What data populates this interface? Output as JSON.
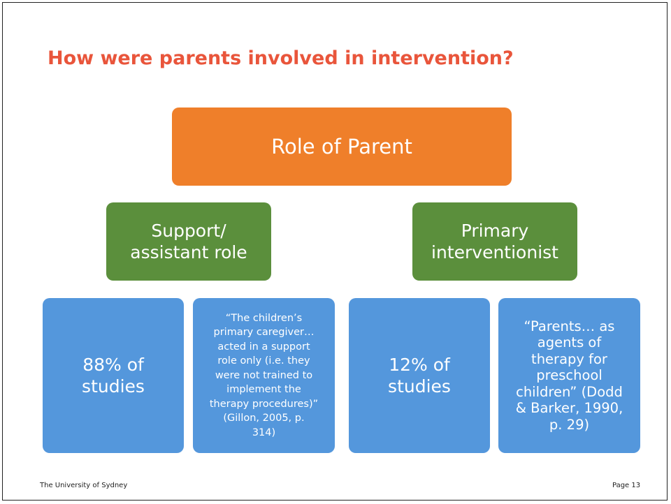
{
  "title": "How were parents involved in intervention?",
  "nodes": [
    {
      "lines": [
        "Role of Parent"
      ]
    },
    {
      "lines": [
        "Support/",
        "assistant role"
      ]
    },
    {
      "lines": [
        "Primary",
        "interventionist"
      ]
    },
    {
      "lines": [
        "88% of",
        "studies"
      ]
    },
    {
      "lines": [
        "“The children’s",
        "primary caregiver…",
        "acted in a support",
        "role only (i.e. they",
        "were not trained to",
        "implement the",
        "therapy procedures)”",
        "(Gillon, 2005, p.",
        "314)"
      ]
    },
    {
      "lines": [
        "12% of",
        "studies"
      ]
    },
    {
      "lines": [
        "“Parents… as",
        "agents of",
        "therapy for",
        "preschool",
        "children” (Dodd",
        "& Barker, 1990,",
        "p. 29)"
      ]
    }
  ],
  "footer": {
    "left": "The University of Sydney",
    "right": "Page 13"
  }
}
